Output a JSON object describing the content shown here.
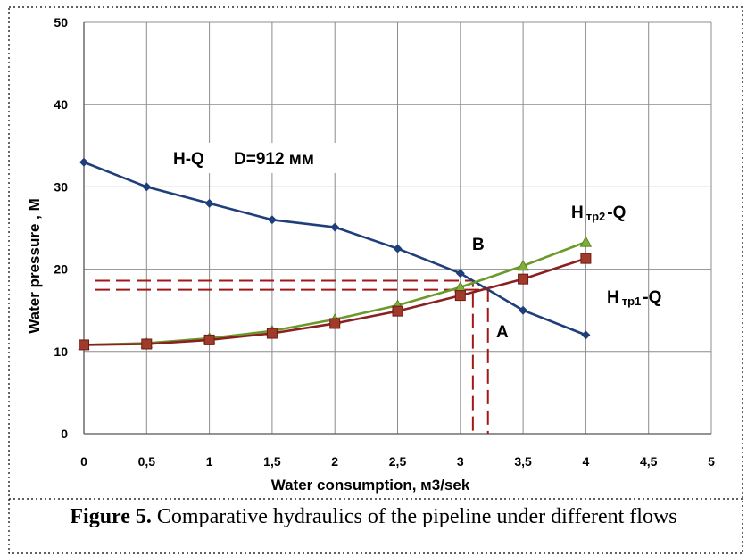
{
  "chart_data": {
    "type": "line",
    "xlabel": "Water consumption, м3/sek",
    "ylabel": "Water pressure , M",
    "xlim": [
      0,
      5
    ],
    "ylim": [
      0,
      50
    ],
    "x_ticks": [
      "0",
      "0,5",
      "1",
      "1,5",
      "2",
      "2,5",
      "3",
      "3,5",
      "4",
      "4,5",
      "5"
    ],
    "x_tick_values": [
      0,
      0.5,
      1,
      1.5,
      2,
      2.5,
      3,
      3.5,
      4,
      4.5,
      5
    ],
    "y_ticks": [
      "0",
      "10",
      "20",
      "30",
      "40",
      "50"
    ],
    "y_tick_values": [
      0,
      10,
      20,
      30,
      40,
      50
    ],
    "grid": true,
    "series": [
      {
        "color": "#1f3f7a",
        "marker": "diamond",
        "x": [
          0,
          0.5,
          1,
          1.5,
          2,
          2.5,
          3,
          3.5,
          4
        ],
        "y": [
          33,
          30,
          28,
          26,
          25.1,
          22.5,
          19.5,
          15,
          12
        ]
      },
      {
        "color": "#6b9a2a",
        "marker": "triangle",
        "x": [
          0,
          0.5,
          1,
          1.5,
          2,
          2.5,
          3,
          3.5,
          4
        ],
        "y": [
          10.8,
          11,
          11.6,
          12.5,
          13.9,
          15.6,
          17.8,
          20.4,
          23.3
        ]
      },
      {
        "color": "#8b2020",
        "marker": "square",
        "x": [
          0,
          0.5,
          1,
          1.5,
          2,
          2.5,
          3,
          3.5,
          4
        ],
        "y": [
          10.8,
          10.9,
          11.4,
          12.2,
          13.4,
          14.9,
          16.8,
          18.8,
          21.3
        ]
      }
    ],
    "reference_lines": [
      {
        "point": "B",
        "x": 3.1,
        "y": 18.6
      },
      {
        "point": "A",
        "x": 3.22,
        "y": 17.5
      }
    ],
    "annotations": {
      "hq": "H-Q",
      "diameter": "D=912 мм",
      "htr2_h": "H",
      "htr2_sub": "тр2",
      "htr2_q": "-Q",
      "htr1_h": "H",
      "htr1_sub": "тр1",
      "htr1_q": "-Q",
      "point_b": "B",
      "point_a": "A"
    }
  },
  "caption": {
    "label": "Figure 5.",
    "text": " Comparative hydraulics of the pipeline under different flows"
  }
}
